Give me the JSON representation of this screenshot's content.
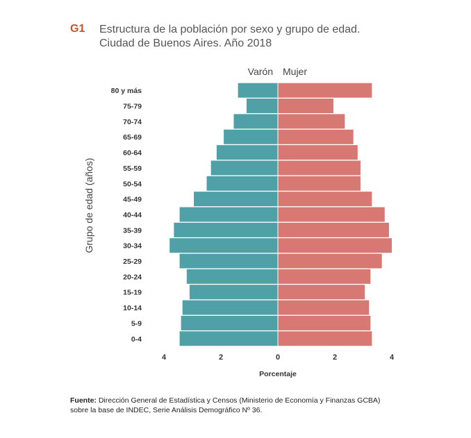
{
  "figure_label": "G1",
  "title_line1": "Estructura de la población por sexo y grupo de edad.",
  "title_line2": "Ciudad de Buenos Aires. Año 2018",
  "source_label": "Fuente:",
  "source_line1": "Dirección General de Estadística y Censos (Ministerio de Economía y Finanzas GCBA)",
  "source_line2": "sobre la base de INDEC, Serie Análisis Demográfico Nº 36.",
  "colors": {
    "male": "#4fa0a7",
    "female": "#d77872",
    "title": "#555555",
    "label": "#c0562f"
  },
  "chart_data": {
    "type": "bar",
    "orientation": "horizontal",
    "subtype": "population-pyramid",
    "ylabel": "Grupo de edad (años)",
    "xlabel": "Porcentaje",
    "xlim": [
      -4.2,
      4.2
    ],
    "x_ticks": [
      -4,
      -2,
      0,
      2,
      4
    ],
    "x_tick_labels": [
      "4",
      "2",
      "0",
      "2",
      "4"
    ],
    "grid": false,
    "categories": [
      "80 y más",
      "75-79",
      "70-74",
      "65-69",
      "60-64",
      "55-59",
      "50-54",
      "45-49",
      "40-44",
      "35-39",
      "30-34",
      "25-29",
      "20-24",
      "15-19",
      "10-14",
      "5-9",
      "0-4"
    ],
    "series": [
      {
        "name": "Varón",
        "values": [
          1.4,
          1.1,
          1.55,
          1.9,
          2.15,
          2.35,
          2.5,
          2.95,
          3.45,
          3.65,
          3.8,
          3.45,
          3.2,
          3.1,
          3.35,
          3.4,
          3.45
        ]
      },
      {
        "name": "Mujer",
        "values": [
          3.3,
          1.95,
          2.35,
          2.65,
          2.8,
          2.9,
          2.9,
          3.3,
          3.75,
          3.9,
          4.0,
          3.65,
          3.25,
          3.05,
          3.2,
          3.25,
          3.3
        ]
      }
    ]
  }
}
